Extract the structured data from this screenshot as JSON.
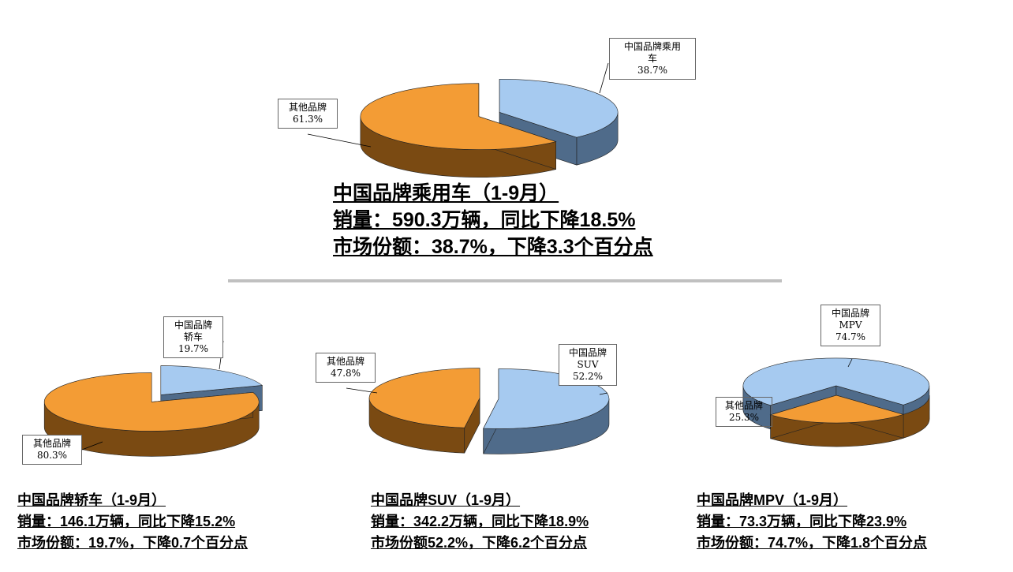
{
  "colors": {
    "chinese_top": "#a6caf0",
    "chinese_side": "#4f6b8a",
    "other_top": "#f39c35",
    "other_side": "#7a4a12"
  },
  "charts": [
    {
      "chart_data": {
        "type": "pie",
        "categories": [
          "中国品牌乘用车",
          "其他品牌"
        ],
        "values": [
          38.7,
          61.3
        ],
        "value_labels": [
          "38.7%",
          "61.3%"
        ]
      },
      "labels": {
        "chinese": [
          "中国品牌乘用",
          "车",
          "38.7%"
        ],
        "other": [
          "其他品牌",
          "61.3%"
        ]
      },
      "caption": [
        "中国品牌乘用车（1-9月）",
        "销量：590.3万辆，同比下降18.5%",
        "市场份额：38.7%，下降3.3个百分点"
      ]
    },
    {
      "chart_data": {
        "type": "pie",
        "categories": [
          "中国品牌轿车",
          "其他品牌"
        ],
        "values": [
          19.7,
          80.3
        ],
        "value_labels": [
          "19.7%",
          "80.3%"
        ]
      },
      "labels": {
        "chinese": [
          "中国品牌",
          "轿车",
          "19.7%"
        ],
        "other": [
          "其他品牌",
          "80.3%"
        ]
      },
      "caption": [
        "中国品牌轿车（1-9月）",
        "销量：146.1万辆，同比下降15.2%",
        "市场份额：19.7%，下降0.7个百分点"
      ]
    },
    {
      "chart_data": {
        "type": "pie",
        "categories": [
          "中国品牌SUV",
          "其他品牌"
        ],
        "values": [
          52.2,
          47.8
        ],
        "value_labels": [
          "52.2%",
          "47.8%"
        ]
      },
      "labels": {
        "chinese": [
          "中国品牌",
          "SUV",
          "52.2%"
        ],
        "other": [
          "其他品牌",
          "47.8%"
        ]
      },
      "caption": [
        "中国品牌SUV（1-9月）",
        "销量：342.2万辆，同比下降18.9%",
        "市场份额52.2%，下降6.2个百分点"
      ]
    },
    {
      "chart_data": {
        "type": "pie",
        "categories": [
          "中国品牌MPV",
          "其他品牌"
        ],
        "values": [
          74.7,
          25.3
        ],
        "value_labels": [
          "74.7%",
          "25.3%"
        ]
      },
      "labels": {
        "chinese": [
          "中国品牌",
          "MPV",
          "74.7%"
        ],
        "other": [
          "其他品牌",
          "25.3%"
        ]
      },
      "caption": [
        "中国品牌MPV（1-9月）",
        "销量：73.3万辆，同比下降23.9%",
        "市场份额：74.7%，下降1.8个百分点"
      ]
    }
  ]
}
